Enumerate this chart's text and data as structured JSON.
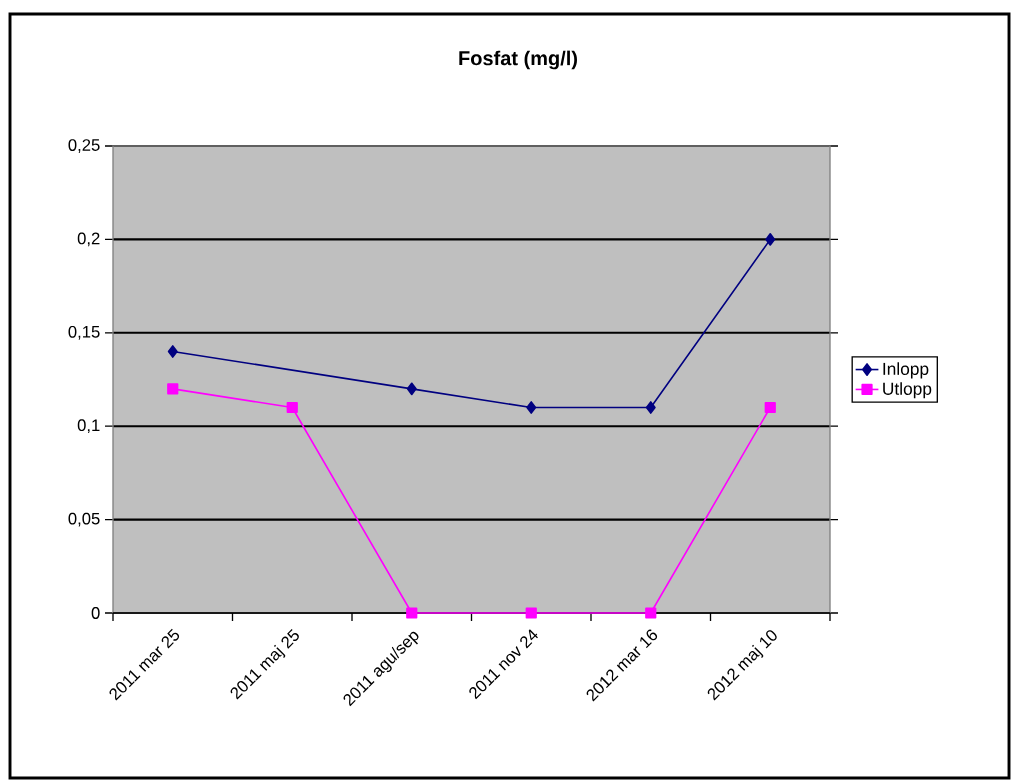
{
  "chart_data": {
    "type": "line",
    "title": "Fosfat (mg/l)",
    "categories": [
      "2011 mar 25",
      "2011 maj 25",
      "2011 agu/sep",
      "2011 nov 24",
      "2012 mar 16",
      "2012 maj 10"
    ],
    "series": [
      {
        "name": "Inlopp",
        "color": "#000080",
        "marker": "diamond",
        "values": [
          0.14,
          null,
          0.12,
          0.11,
          0.11,
          0.2
        ]
      },
      {
        "name": "Utlopp",
        "color": "#ff00ff",
        "marker": "square",
        "values": [
          0.12,
          0.11,
          0,
          0,
          0,
          0.11
        ]
      }
    ],
    "ylim": [
      0,
      0.25
    ],
    "yticks": [
      {
        "value": 0,
        "label": "0"
      },
      {
        "value": 0.05,
        "label": "0,05"
      },
      {
        "value": 0.1,
        "label": "0,1"
      },
      {
        "value": 0.15,
        "label": "0,15"
      },
      {
        "value": 0.2,
        "label": "0,2"
      },
      {
        "value": 0.25,
        "label": "0,25"
      }
    ],
    "grid": "y",
    "legend": "right",
    "line_style": "solid"
  }
}
